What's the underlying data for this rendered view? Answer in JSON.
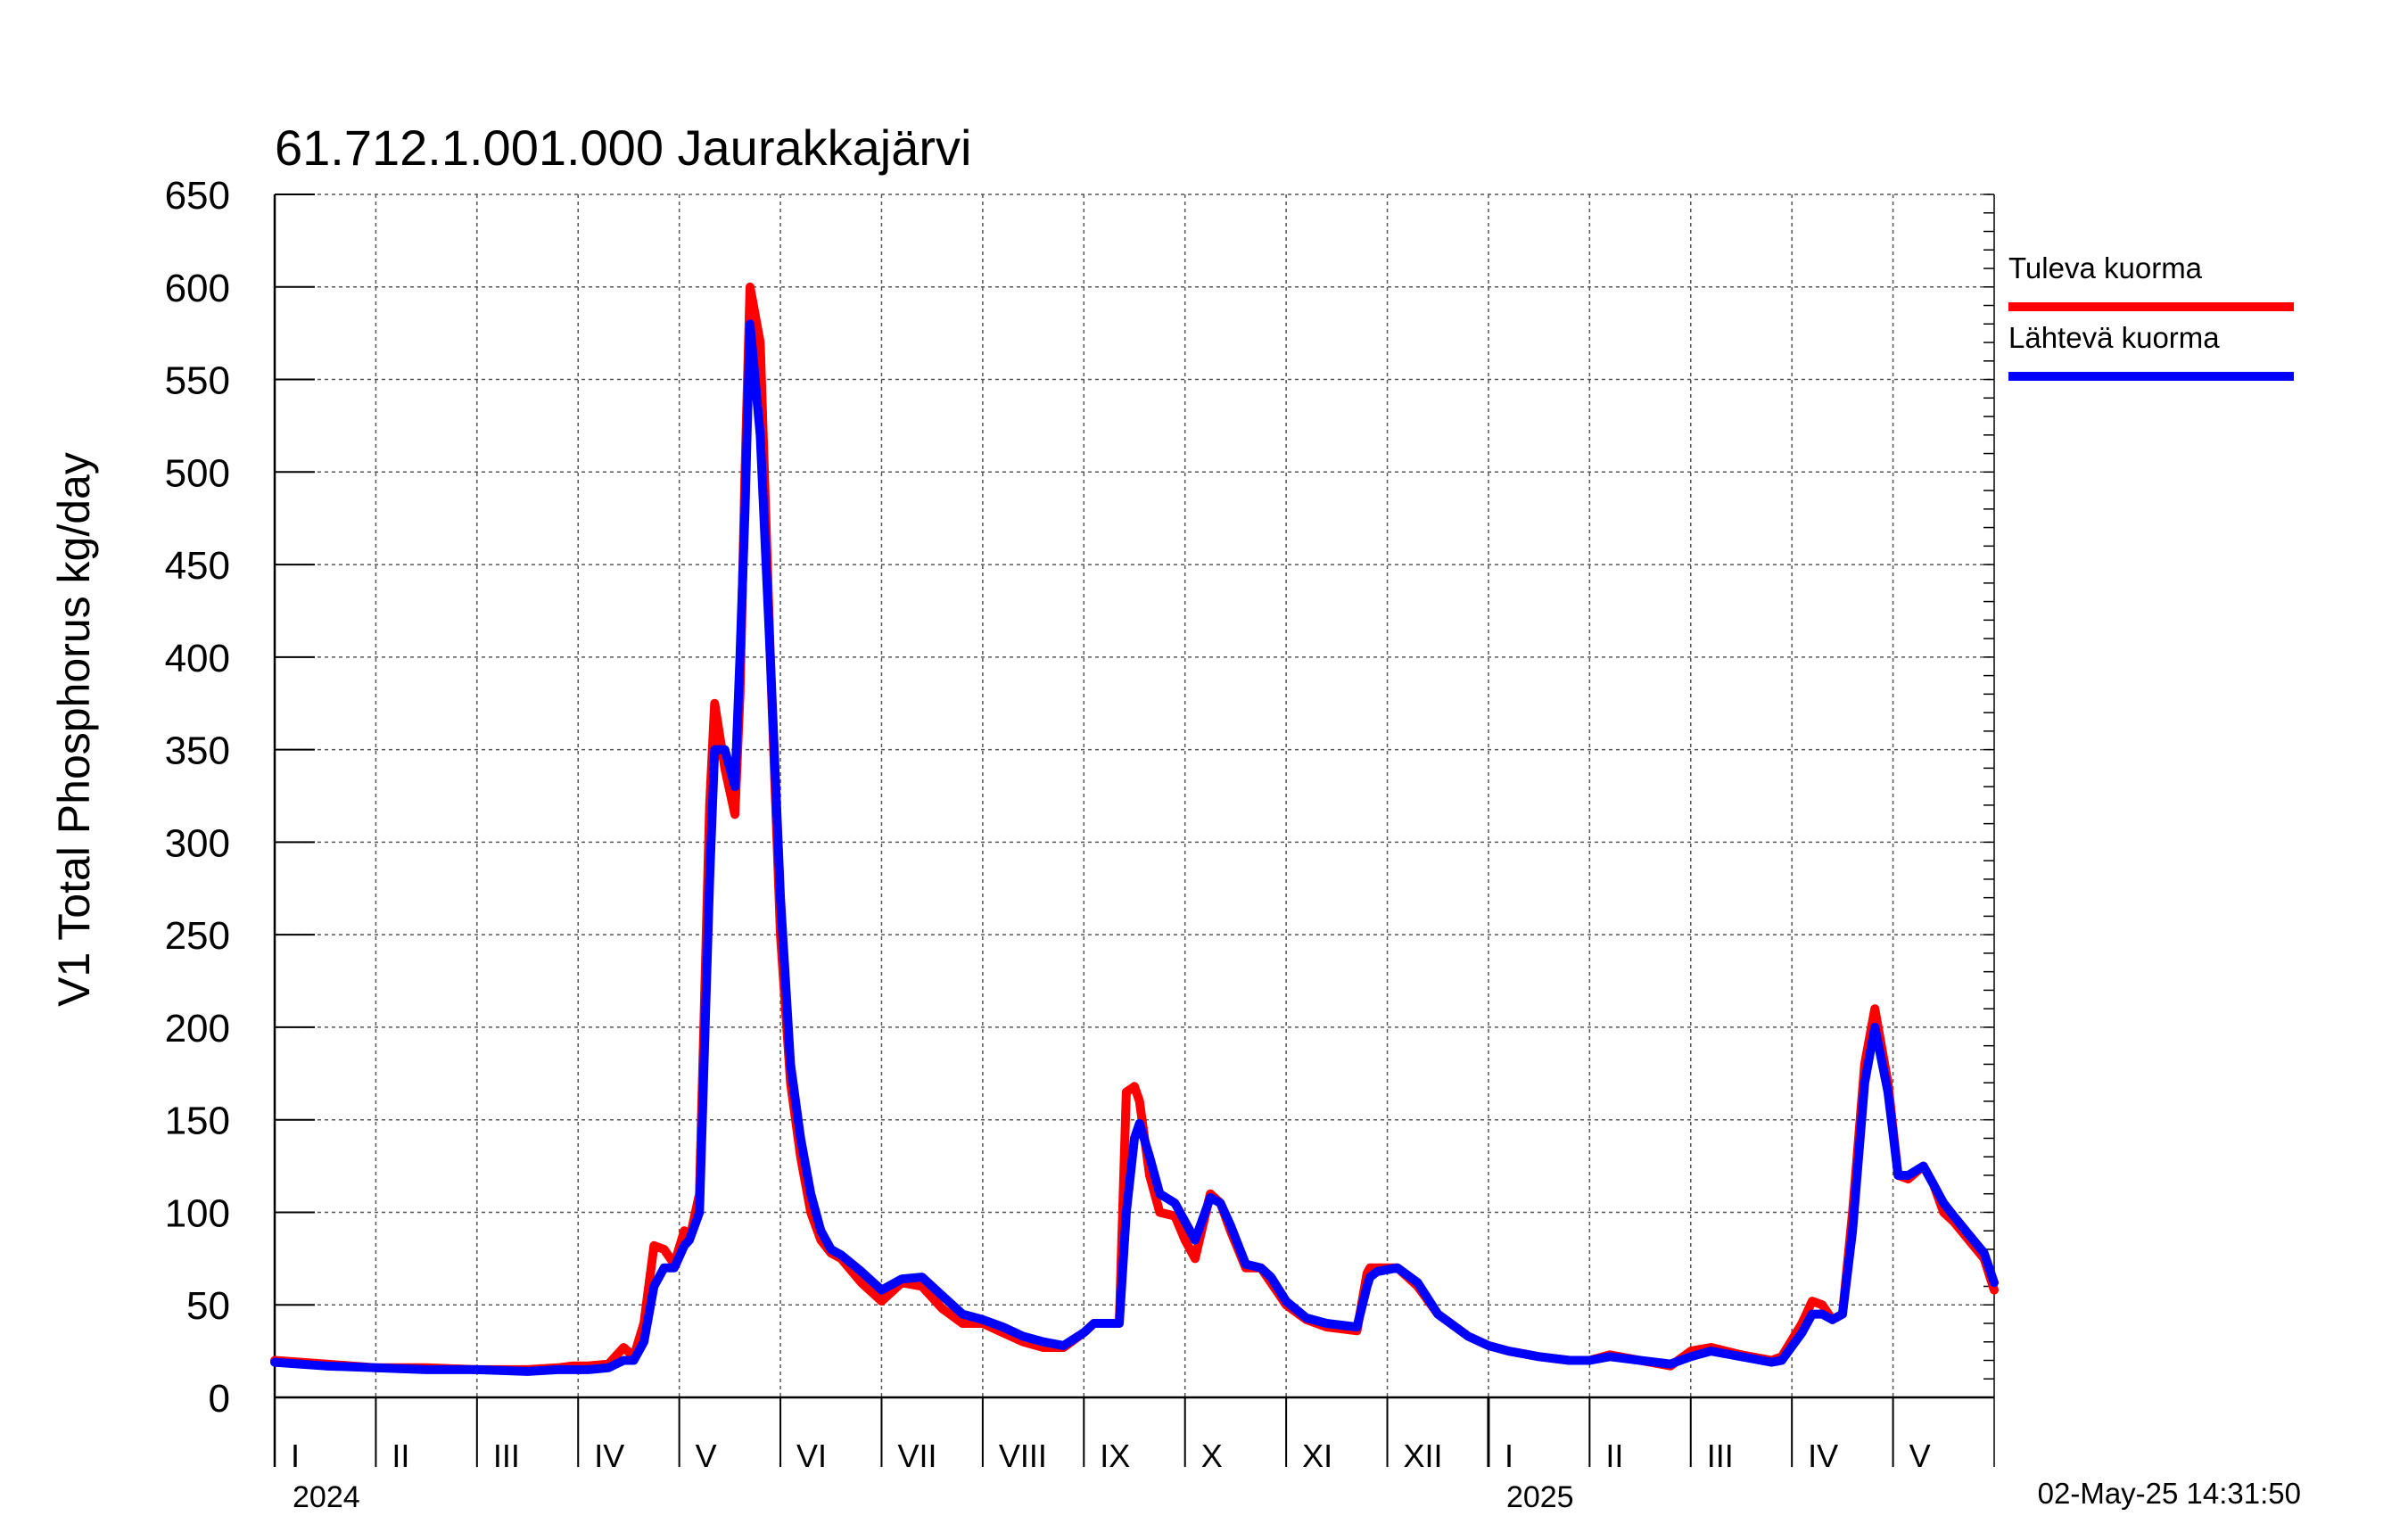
{
  "chart_data": {
    "type": "line",
    "title": "61.712.1.001.000 Jaurakkajärvi",
    "ylabel": "V1 Total Phosphorus kg/day",
    "xlabel": "",
    "ylim": [
      0,
      650
    ],
    "yticks": [
      0,
      50,
      100,
      150,
      200,
      250,
      300,
      350,
      400,
      450,
      500,
      550,
      600,
      650
    ],
    "xlim": [
      0,
      17
    ],
    "month_labels": [
      "I",
      "II",
      "III",
      "IV",
      "V",
      "VI",
      "VII",
      "VIII",
      "IX",
      "X",
      "XI",
      "XII",
      "I",
      "II",
      "III",
      "IV",
      "V"
    ],
    "year_labels": [
      {
        "label": "2024",
        "month_index": 0
      },
      {
        "label": "2025",
        "month_index": 12
      }
    ],
    "grid": true,
    "legend_position": "top-right",
    "timestamp": "02-May-25 14:31:50",
    "series": [
      {
        "name": "Tuleva kuorma",
        "color": "#ff0000",
        "x": [
          0,
          0.5,
          1,
          1.5,
          2,
          2.5,
          2.8,
          2.95,
          3.1,
          3.3,
          3.45,
          3.55,
          3.65,
          3.75,
          3.85,
          3.95,
          4.05,
          4.1,
          4.2,
          4.3,
          4.35,
          4.45,
          4.55,
          4.6,
          4.65,
          4.7,
          4.8,
          4.9,
          5.0,
          5.1,
          5.2,
          5.3,
          5.4,
          5.5,
          5.6,
          5.8,
          6.0,
          6.2,
          6.4,
          6.6,
          6.8,
          7.0,
          7.2,
          7.4,
          7.6,
          7.8,
          8.0,
          8.1,
          8.2,
          8.35,
          8.42,
          8.5,
          8.55,
          8.65,
          8.75,
          8.9,
          9.0,
          9.1,
          9.25,
          9.35,
          9.45,
          9.6,
          9.75,
          9.85,
          10.0,
          10.2,
          10.4,
          10.7,
          10.8,
          10.83,
          10.9,
          11.1,
          11.3,
          11.5,
          11.8,
          12.0,
          12.2,
          12.5,
          12.8,
          13.0,
          13.2,
          13.5,
          13.8,
          14.0,
          14.2,
          14.5,
          14.8,
          14.9,
          15.1,
          15.2,
          15.3,
          15.4,
          15.5,
          15.6,
          15.72,
          15.82,
          15.95,
          16.05,
          16.15,
          16.3,
          16.4,
          16.5,
          16.6,
          16.75,
          16.9,
          17.0
        ],
        "values": [
          20,
          18,
          16,
          16,
          15,
          15,
          16,
          17,
          17,
          18,
          27,
          22,
          40,
          82,
          80,
          72,
          90,
          85,
          110,
          320,
          375,
          340,
          315,
          380,
          500,
          600,
          570,
          400,
          250,
          170,
          130,
          100,
          85,
          78,
          75,
          62,
          52,
          62,
          60,
          48,
          40,
          40,
          35,
          30,
          27,
          27,
          35,
          40,
          40,
          40,
          165,
          168,
          160,
          120,
          100,
          98,
          85,
          75,
          110,
          105,
          90,
          70,
          70,
          62,
          50,
          42,
          38,
          36,
          67,
          70,
          70,
          70,
          60,
          45,
          33,
          28,
          25,
          22,
          20,
          20,
          23,
          20,
          17,
          25,
          27,
          23,
          20,
          22,
          40,
          52,
          50,
          42,
          45,
          100,
          180,
          210,
          170,
          120,
          118,
          125,
          115,
          100,
          95,
          85,
          75,
          58
        ]
      },
      {
        "name": "Lähtevä kuorma",
        "color": "#0000ff",
        "x": [
          0,
          0.5,
          1,
          1.5,
          2,
          2.5,
          2.8,
          2.95,
          3.1,
          3.3,
          3.45,
          3.55,
          3.65,
          3.75,
          3.85,
          3.95,
          4.05,
          4.1,
          4.2,
          4.3,
          4.35,
          4.45,
          4.55,
          4.6,
          4.65,
          4.7,
          4.8,
          4.9,
          5.0,
          5.1,
          5.2,
          5.3,
          5.4,
          5.5,
          5.6,
          5.8,
          6.0,
          6.2,
          6.4,
          6.6,
          6.8,
          7.0,
          7.2,
          7.4,
          7.6,
          7.8,
          8.0,
          8.1,
          8.2,
          8.35,
          8.42,
          8.5,
          8.55,
          8.65,
          8.75,
          8.9,
          9.0,
          9.1,
          9.25,
          9.35,
          9.45,
          9.6,
          9.75,
          9.85,
          10.0,
          10.2,
          10.4,
          10.7,
          10.8,
          10.83,
          10.9,
          11.1,
          11.3,
          11.5,
          11.8,
          12.0,
          12.2,
          12.5,
          12.8,
          13.0,
          13.2,
          13.5,
          13.8,
          14.0,
          14.2,
          14.5,
          14.8,
          14.9,
          15.1,
          15.2,
          15.3,
          15.4,
          15.5,
          15.6,
          15.72,
          15.82,
          15.95,
          16.05,
          16.15,
          16.3,
          16.4,
          16.5,
          16.6,
          16.75,
          16.9,
          17.0
        ],
        "values": [
          19,
          17,
          16,
          15,
          15,
          14,
          15,
          15,
          15,
          16,
          20,
          20,
          30,
          60,
          70,
          70,
          82,
          85,
          100,
          280,
          350,
          350,
          330,
          400,
          480,
          580,
          520,
          400,
          270,
          180,
          140,
          110,
          90,
          80,
          77,
          68,
          58,
          64,
          65,
          55,
          45,
          42,
          38,
          33,
          30,
          28,
          35,
          40,
          40,
          40,
          100,
          140,
          148,
          130,
          110,
          105,
          95,
          85,
          108,
          105,
          93,
          72,
          70,
          65,
          52,
          43,
          40,
          38,
          60,
          65,
          68,
          70,
          62,
          45,
          33,
          28,
          25,
          22,
          20,
          20,
          22,
          20,
          18,
          22,
          25,
          22,
          19,
          20,
          35,
          45,
          45,
          42,
          45,
          90,
          170,
          200,
          165,
          120,
          120,
          125,
          115,
          105,
          98,
          88,
          78,
          62
        ]
      }
    ]
  }
}
